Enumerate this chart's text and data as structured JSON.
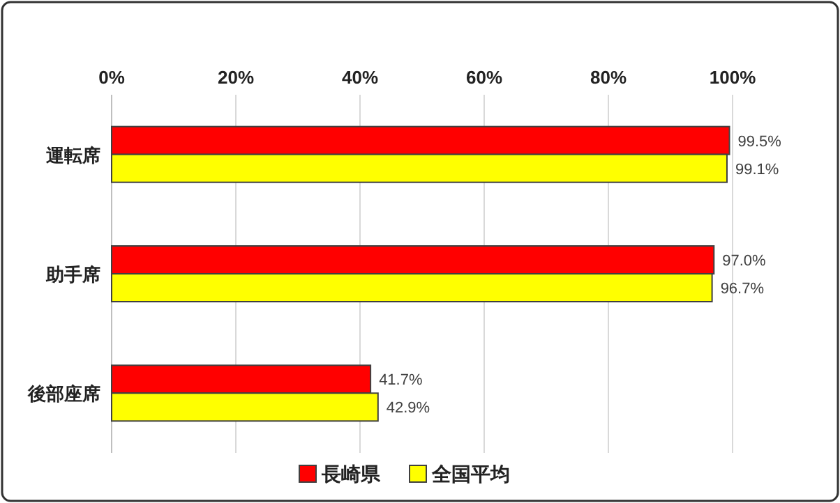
{
  "chart_data": {
    "type": "bar",
    "orientation": "horizontal",
    "categories": [
      "運転席",
      "助手席",
      "後部座席"
    ],
    "series": [
      {
        "name": "長崎県",
        "color": "#ff0000",
        "values": [
          99.5,
          97.0,
          41.7
        ],
        "value_labels": [
          "99.5%",
          "97.0%",
          "41.7%"
        ]
      },
      {
        "name": "全国平均",
        "color": "#ffff00",
        "values": [
          99.1,
          96.7,
          42.9
        ],
        "value_labels": [
          "99.1%",
          "96.7%",
          "42.9%"
        ]
      }
    ],
    "xlim": [
      0,
      100
    ],
    "xticks": [
      {
        "value": 0,
        "label": "0%"
      },
      {
        "value": 20,
        "label": "20%"
      },
      {
        "value": 40,
        "label": "40%"
      },
      {
        "value": 60,
        "label": "60%"
      },
      {
        "value": 80,
        "label": "80%"
      },
      {
        "value": 100,
        "label": "100%"
      }
    ],
    "grid": "x",
    "legend": "bottom"
  }
}
